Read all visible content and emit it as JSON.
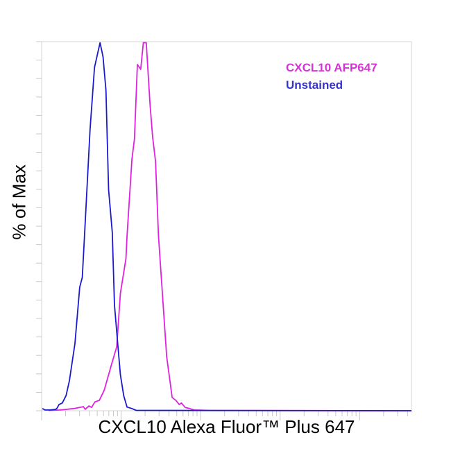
{
  "chart_data": {
    "type": "line",
    "title": "",
    "xlabel": "CXCL10 Alexa Fluor™ Plus 647",
    "ylabel": "% of Max",
    "xlim": [
      0,
      100
    ],
    "ylim": [
      0,
      100
    ],
    "grid": false,
    "legend_position": "top-right",
    "series": [
      {
        "name": "CXCL10 AFP647",
        "color": "#e020e0",
        "points": [
          [
            1.9,
            0.1
          ],
          [
            5.0,
            0.2
          ],
          [
            8.8,
            0.6
          ],
          [
            11.3,
            1.1
          ],
          [
            11.8,
            0.4
          ],
          [
            12.8,
            1.3
          ],
          [
            13.5,
            0.9
          ],
          [
            14.4,
            2.4
          ],
          [
            15.6,
            2.8
          ],
          [
            16.9,
            5.5
          ],
          [
            18.8,
            12.2
          ],
          [
            20.3,
            17.3
          ],
          [
            21.3,
            31.8
          ],
          [
            22.8,
            41.2
          ],
          [
            23.1,
            47.4
          ],
          [
            24.4,
            68.0
          ],
          [
            25.1,
            73.7
          ],
          [
            25.9,
            93.8
          ],
          [
            26.8,
            92.5
          ],
          [
            27.5,
            99.7
          ],
          [
            28.3,
            99.7
          ],
          [
            29.3,
            83.1
          ],
          [
            30.0,
            74.3
          ],
          [
            30.8,
            67.5
          ],
          [
            31.6,
            47.4
          ],
          [
            33.8,
            14.7
          ],
          [
            35.3,
            3.6
          ],
          [
            36.3,
            2.8
          ],
          [
            37.2,
            1.7
          ],
          [
            37.8,
            2.1
          ],
          [
            38.8,
            0.9
          ],
          [
            40.0,
            0.6
          ],
          [
            41.3,
            0.2
          ],
          [
            45.0,
            0.1
          ],
          [
            100,
            0
          ]
        ]
      },
      {
        "name": "Unstained",
        "color": "#1a1acc",
        "points": [
          [
            0.2,
            0.6
          ],
          [
            0.9,
            0.2
          ],
          [
            2.3,
            0.2
          ],
          [
            3.8,
            0.4
          ],
          [
            4.1,
            0.6
          ],
          [
            4.7,
            1.7
          ],
          [
            5.6,
            2.1
          ],
          [
            6.6,
            4.1
          ],
          [
            7.5,
            8.1
          ],
          [
            9.0,
            18.2
          ],
          [
            10.3,
            33.5
          ],
          [
            11.0,
            36.1
          ],
          [
            11.6,
            47.4
          ],
          [
            13.1,
            76.2
          ],
          [
            14.3,
            93.0
          ],
          [
            15.8,
            99.7
          ],
          [
            16.6,
            95.9
          ],
          [
            17.4,
            86.8
          ],
          [
            18.1,
            59.9
          ],
          [
            19.1,
            48.4
          ],
          [
            19.7,
            28.6
          ],
          [
            20.6,
            17.9
          ],
          [
            21.3,
            9.8
          ],
          [
            22.2,
            4.1
          ],
          [
            23.1,
            1.0
          ],
          [
            24.4,
            0.6
          ],
          [
            25.6,
            0.1
          ],
          [
            100,
            0
          ]
        ]
      }
    ],
    "legend": {
      "items": [
        {
          "label": "CXCL10 AFP647",
          "color": "#d633d6"
        },
        {
          "label": "Unstained",
          "color": "#3535cc"
        }
      ]
    }
  }
}
